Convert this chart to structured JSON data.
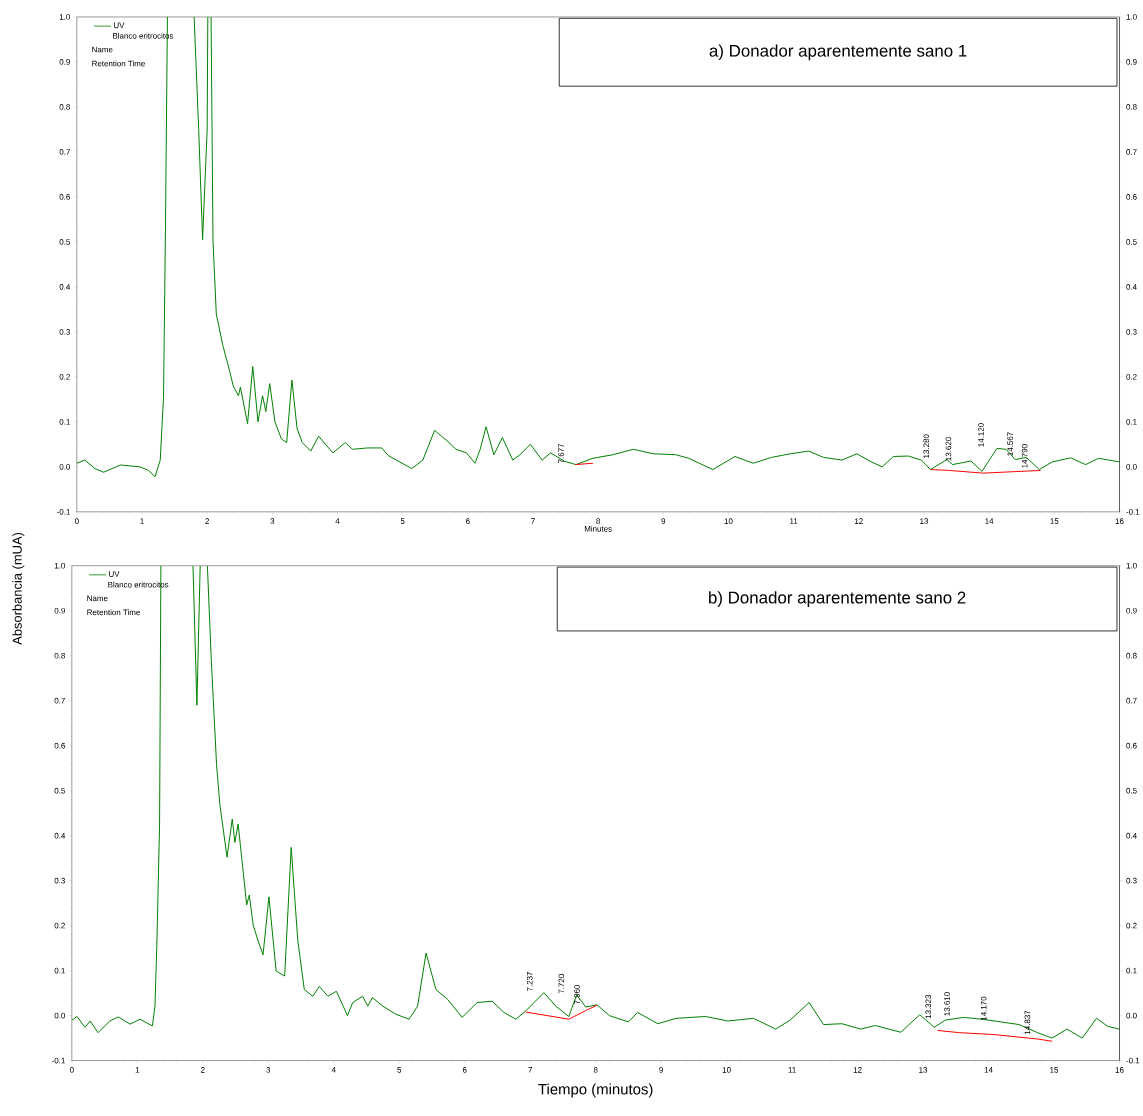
{
  "chart_data": [
    {
      "type": "line",
      "title": "a) Donador aparentemente sano 1",
      "xlabel": "Minutes",
      "xlim": [
        0,
        16
      ],
      "xticks": [
        0,
        1,
        2,
        3,
        4,
        5,
        6,
        7,
        8,
        9,
        10,
        11,
        12,
        13,
        14,
        15,
        16
      ],
      "ylim": [
        -0.1,
        1.0
      ],
      "yticks": [
        {
          "value": -0.1,
          "label": "-0.1"
        },
        {
          "value": 0.0,
          "label": "0.0"
        },
        {
          "value": 0.1,
          "label": "0.1"
        },
        {
          "value": 0.2,
          "label": "0.2"
        },
        {
          "value": 0.3,
          "label": "0.3"
        },
        {
          "value": 0.4,
          "label": "0.4"
        },
        {
          "value": 0.5,
          "label": "0.5"
        },
        {
          "value": 0.6,
          "label": "0.6"
        },
        {
          "value": 0.7,
          "label": "0.7"
        },
        {
          "value": 0.8,
          "label": "0.8"
        },
        {
          "value": 0.9,
          "label": "0.9"
        },
        {
          "value": 1.0,
          "label": "1.0"
        }
      ],
      "y2lim": [
        -0.1,
        1.0
      ],
      "y2ticks": [
        {
          "value": -0.1,
          "label": "-0.1"
        },
        {
          "value": 0.0,
          "label": "0.0"
        },
        {
          "value": 0.1,
          "label": "0.1"
        },
        {
          "value": 0.2,
          "label": "0.2"
        },
        {
          "value": 0.3,
          "label": "0.3"
        },
        {
          "value": 0.4,
          "label": "0.4"
        },
        {
          "value": 0.5,
          "label": "0.5"
        },
        {
          "value": 0.6,
          "label": "0.6"
        },
        {
          "value": 0.7,
          "label": "0.7"
        },
        {
          "value": 0.8,
          "label": "0.8"
        },
        {
          "value": 0.9,
          "label": "0.9"
        },
        {
          "value": 1.0,
          "label": "1.0"
        }
      ],
      "legend": "top left",
      "series": [
        {
          "name": "UV",
          "color": "#008000",
          "x": [
            0,
            0.12,
            0.28,
            0.41,
            0.67,
            0.97,
            1.1,
            1.2,
            1.28,
            1.33,
            1.36,
            1.39,
            1.6,
            1.8,
            1.87,
            1.93,
            2.0,
            2.01,
            2.035,
            2.06,
            2.09,
            2.14,
            2.24,
            2.32,
            2.4,
            2.48,
            2.51,
            2.62,
            2.7,
            2.78,
            2.85,
            2.9,
            2.96,
            3.04,
            3.14,
            3.22,
            3.3,
            3.38,
            3.46,
            3.59,
            3.71,
            3.93,
            4.12,
            4.23,
            4.46,
            4.68,
            4.78,
            5.14,
            5.31,
            5.49,
            5.68,
            5.82,
            5.98,
            6.11,
            6.19,
            6.28,
            6.4,
            6.53,
            6.69,
            6.8,
            6.96,
            7.14,
            7.27,
            7.49,
            7.66,
            7.92,
            8.23,
            8.54,
            8.85,
            9.19,
            9.39,
            9.76,
            10.1,
            10.38,
            10.66,
            10.95,
            11.23,
            11.46,
            11.74,
            11.97,
            12.19,
            12.36,
            12.53,
            12.76,
            12.96,
            13.1,
            13.35,
            13.44,
            13.72,
            13.89,
            14.12,
            14.26,
            14.4,
            14.57,
            14.77,
            14.97,
            15.25,
            15.48,
            15.68,
            16
          ],
          "values": [
            0.008,
            0.015,
            -0.004,
            -0.012,
            0.004,
            0.0,
            -0.008,
            -0.022,
            0.015,
            0.154,
            0.53,
            1.0,
            null,
            1.0,
            0.75,
            0.505,
            0.75,
            1.0,
            null,
            1.0,
            0.5,
            0.34,
            0.27,
            0.227,
            0.18,
            0.158,
            0.177,
            0.096,
            0.223,
            0.1,
            0.158,
            0.123,
            0.185,
            0.1,
            0.062,
            0.054,
            0.193,
            0.085,
            0.054,
            0.035,
            0.068,
            0.031,
            0.054,
            0.039,
            0.042,
            0.042,
            0.025,
            -0.004,
            0.015,
            0.081,
            0.058,
            0.039,
            0.031,
            0.008,
            0.039,
            0.089,
            0.027,
            0.065,
            0.015,
            0.027,
            0.05,
            0.015,
            0.031,
            0.012,
            0.005,
            0.019,
            0.027,
            0.039,
            0.029,
            0.027,
            0.019,
            -0.006,
            0.023,
            0.008,
            0.021,
            0.029,
            0.035,
            0.021,
            0.015,
            0.029,
            0.011,
            0.0,
            0.023,
            0.024,
            0.015,
            -0.006,
            0.016,
            0.005,
            0.013,
            -0.01,
            0.041,
            0.039,
            0.016,
            0.021,
            -0.006,
            0.011,
            0.02,
            0.005,
            0.019,
            0.011
          ]
        },
        {
          "color": "#ff0000",
          "x": [
            7.65,
            7.92,
            10,
            13.1,
            13.39,
            13.91,
            14.49,
            14.79
          ],
          "values": [
            0.005,
            0.008,
            null,
            -0.006,
            -0.008,
            -0.014,
            -0.01,
            -0.008
          ]
        }
      ],
      "annotations": [
        "Blanco eritrocitos",
        "Name",
        "Retention Time",
        {
          "text": "7.677",
          "x": 7.677,
          "y": 0.005
        },
        {
          "text": "13.280",
          "x": 13.28,
          "y": 0.016
        },
        {
          "text": "13.620",
          "x": 13.62,
          "y": 0.01
        },
        {
          "text": "14.120",
          "x": 14.12,
          "y": 0.041
        },
        {
          "text": "14.567",
          "x": 14.567,
          "y": 0.021
        },
        {
          "text": "14.790",
          "x": 14.79,
          "y": -0.006
        }
      ]
    },
    {
      "type": "line",
      "title": "b) Donador aparentemente sano 2",
      "xlabel": "Tiempo (minutos)",
      "ylabel": "Absorbancia (mUA)",
      "xlim": [
        0,
        16
      ],
      "xticks": [
        0,
        1,
        2,
        3,
        4,
        5,
        6,
        7,
        8,
        9,
        10,
        11,
        12,
        13,
        14,
        15,
        16
      ],
      "ylim": [
        -0.1,
        1.0
      ],
      "yticks": [
        {
          "value": -0.1,
          "label": "-0.1"
        },
        {
          "value": 0.0,
          "label": "0.0"
        },
        {
          "value": 0.1,
          "label": "0.1"
        },
        {
          "value": 0.2,
          "label": "0.2"
        },
        {
          "value": 0.3,
          "label": "0.3"
        },
        {
          "value": 0.4,
          "label": "0.4"
        },
        {
          "value": 0.5,
          "label": "0.5"
        },
        {
          "value": 0.6,
          "label": "0.6"
        },
        {
          "value": 0.7,
          "label": "0.7"
        },
        {
          "value": 0.8,
          "label": "0.8"
        },
        {
          "value": 0.9,
          "label": "0.9"
        },
        {
          "value": 1.0,
          "label": "1.0"
        }
      ],
      "y2lim": [
        -0.1,
        1.0
      ],
      "y2ticks": [
        {
          "value": -0.1,
          "label": "-0.1"
        },
        {
          "value": 0.0,
          "label": "0.0"
        },
        {
          "value": 0.1,
          "label": "0.1"
        },
        {
          "value": 0.2,
          "label": "0.2"
        },
        {
          "value": 0.3,
          "label": "0.3"
        },
        {
          "value": 0.4,
          "label": "0.4"
        },
        {
          "value": 0.5,
          "label": "0.5"
        },
        {
          "value": 0.6,
          "label": "0.6"
        },
        {
          "value": 0.7,
          "label": "0.7"
        },
        {
          "value": 0.8,
          "label": "0.8"
        },
        {
          "value": 0.9,
          "label": "0.9"
        },
        {
          "value": 1.0,
          "label": "1.0"
        }
      ],
      "legend": "top left",
      "series": [
        {
          "name": "UV",
          "color": "#008000",
          "x": [
            0,
            0.08,
            0.2,
            0.28,
            0.4,
            0.58,
            0.71,
            0.89,
            1.04,
            1.23,
            1.27,
            1.3,
            1.34,
            1.36,
            1.6,
            1.85,
            1.91,
            1.96,
            2.0,
            2.07,
            2.13,
            2.21,
            2.26,
            2.37,
            2.45,
            2.49,
            2.54,
            2.67,
            2.71,
            2.77,
            2.84,
            2.92,
            3.01,
            3.12,
            3.25,
            3.35,
            3.45,
            3.55,
            3.68,
            3.78,
            3.91,
            4.04,
            4.21,
            4.29,
            4.44,
            4.52,
            4.59,
            4.75,
            4.95,
            5.15,
            5.28,
            5.41,
            5.56,
            5.74,
            5.96,
            6.19,
            6.42,
            6.6,
            6.78,
            6.93,
            7.21,
            7.39,
            7.59,
            7.71,
            7.85,
            8.02,
            8.21,
            8.5,
            8.64,
            8.95,
            9.23,
            9.68,
            10.02,
            10.41,
            10.75,
            10.97,
            11.26,
            11.48,
            11.76,
            12.05,
            12.27,
            12.66,
            12.95,
            13.17,
            13.34,
            13.62,
            13.9,
            14.19,
            14.47,
            14.75,
            14.97,
            15.2,
            15.43,
            15.65,
            15.82,
            16
          ],
          "values": [
            -0.01,
            -0.002,
            -0.026,
            -0.012,
            -0.038,
            -0.012,
            -0.003,
            -0.019,
            -0.008,
            -0.023,
            0.021,
            0.168,
            0.426,
            1.0,
            null,
            1.0,
            0.69,
            1.0,
            null,
            1.0,
            0.79,
            0.558,
            0.47,
            0.352,
            0.437,
            0.385,
            0.426,
            0.246,
            0.268,
            0.201,
            0.168,
            0.135,
            0.264,
            0.099,
            0.088,
            0.374,
            0.168,
            0.058,
            0.043,
            0.065,
            0.043,
            0.054,
            0.0,
            0.029,
            0.043,
            0.021,
            0.04,
            0.021,
            0.003,
            -0.008,
            0.021,
            0.139,
            0.058,
            0.036,
            -0.004,
            0.029,
            0.032,
            0.007,
            -0.008,
            0.01,
            0.051,
            0.021,
            -0.002,
            0.046,
            0.019,
            0.024,
            0.0,
            -0.014,
            0.007,
            -0.018,
            -0.006,
            -0.002,
            -0.012,
            -0.006,
            -0.03,
            -0.01,
            0.029,
            -0.02,
            -0.018,
            -0.03,
            -0.022,
            -0.037,
            0.002,
            -0.026,
            -0.01,
            -0.004,
            -0.008,
            -0.014,
            -0.02,
            -0.038,
            -0.05,
            -0.03,
            -0.05,
            -0.006,
            -0.024,
            -0.03
          ]
        },
        {
          "color": "#ff0000",
          "x": [
            6.93,
            7.59,
            7.86,
            8.02,
            10,
            13.22,
            13.56,
            14.07,
            14.75,
            14.97
          ],
          "values": [
            0.008,
            -0.008,
            0.012,
            0.023,
            null,
            -0.033,
            -0.038,
            -0.042,
            -0.052,
            -0.057
          ]
        }
      ],
      "annotations": [
        "Blanco eritrocitos",
        "Name",
        "Retention Time",
        {
          "text": "7.237",
          "x": 7.237,
          "y": 0.051
        },
        {
          "text": "7.720",
          "x": 7.72,
          "y": 0.046
        },
        {
          "text": "7.960",
          "x": 7.96,
          "y": 0.022
        },
        {
          "text": "13.323",
          "x": 13.323,
          "y": -0.01
        },
        {
          "text": "13.610",
          "x": 13.61,
          "y": -0.004
        },
        {
          "text": "14.170",
          "x": 14.17,
          "y": -0.014
        },
        {
          "text": "14.837",
          "x": 14.837,
          "y": -0.045
        }
      ]
    }
  ]
}
